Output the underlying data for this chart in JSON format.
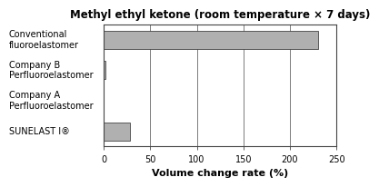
{
  "title": "Methyl ethyl ketone (room temperature × 7 days)",
  "categories": [
    "SUNELAST I®",
    "Company A\nPerfluoroelastomer",
    "Company B\nPerfluoroelastomer",
    "Conventional\nfluoroelastomer"
  ],
  "values": [
    28,
    0,
    1.5,
    230
  ],
  "bar_color": "#b0b0b0",
  "xlabel": "Volume change rate (%)",
  "xlim": [
    0,
    250
  ],
  "xticks": [
    0,
    50,
    100,
    150,
    200,
    250
  ],
  "title_fontsize": 8.5,
  "label_fontsize": 7.0,
  "xlabel_fontsize": 8.0,
  "tick_fontsize": 7.0,
  "background_color": "#ffffff",
  "bar_edge_color": "#444444",
  "grid_color": "#666666"
}
